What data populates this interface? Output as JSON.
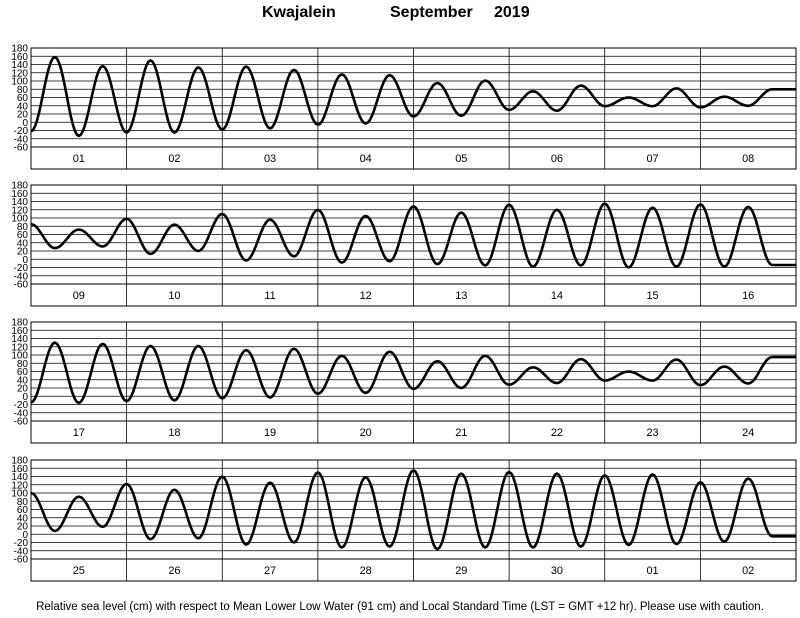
{
  "title": {
    "location": "Kwajalein",
    "month": "September",
    "year": "2019"
  },
  "footer": "Relative sea level (cm) with respect to Mean Lower Low Water (91 cm) and Local Standard Time (LST = GMT +12 hr). Please use with caution.",
  "chart_data": {
    "type": "line",
    "ylim": [
      -60,
      180
    ],
    "yticks": [
      -60,
      -40,
      -20,
      0,
      20,
      40,
      60,
      80,
      100,
      120,
      140,
      160,
      180
    ],
    "grid": true,
    "ylabel": "",
    "xlabel": "",
    "panels": [
      {
        "day_labels": [
          "01",
          "02",
          "03",
          "04",
          "05",
          "06",
          "07",
          "08"
        ],
        "series": [
          {
            "x_hours": [
              0,
              6,
              12,
              18,
              24,
              30,
              36,
              42,
              48,
              54,
              60,
              66,
              72,
              78,
              84,
              90,
              96,
              102,
              108,
              114,
              120,
              126,
              132,
              138,
              144,
              150,
              156,
              162,
              168,
              174,
              180,
              186,
              192
            ],
            "values": [
              -22,
              158,
              -33,
              136,
              -25,
              150,
              -25,
              133,
              -18,
              135,
              -15,
              127,
              -6,
              116,
              -3,
              114,
              14,
              95,
              16,
              101,
              30,
              75,
              28,
              89,
              39,
              60,
              39,
              82,
              36,
              62,
              40,
              80,
              80
            ]
          }
        ]
      },
      {
        "day_labels": [
          "09",
          "10",
          "11",
          "12",
          "13",
          "14",
          "15",
          "16"
        ],
        "series": [
          {
            "x_hours": [
              0,
              6,
              12,
              18,
              24,
              30,
              36,
              42,
              48,
              54,
              60,
              66,
              72,
              78,
              84,
              90,
              96,
              102,
              108,
              114,
              120,
              126,
              132,
              138,
              144,
              150,
              156,
              162,
              168,
              174,
              180,
              186,
              192
            ],
            "values": [
              85,
              27,
              72,
              31,
              98,
              13,
              84,
              20,
              110,
              -3,
              96,
              7,
              120,
              -8,
              105,
              -5,
              128,
              -12,
              113,
              -15,
              132,
              -18,
              120,
              -15,
              135,
              -20,
              125,
              -18,
              133,
              -18,
              127,
              -14,
              -14
            ]
          }
        ]
      },
      {
        "day_labels": [
          "17",
          "18",
          "19",
          "20",
          "21",
          "22",
          "23",
          "24"
        ],
        "series": [
          {
            "x_hours": [
              0,
              6,
              12,
              18,
              24,
              30,
              36,
              42,
              48,
              54,
              60,
              66,
              72,
              78,
              84,
              90,
              96,
              102,
              108,
              114,
              120,
              126,
              132,
              138,
              144,
              150,
              156,
              162,
              168,
              174,
              180,
              186,
              192
            ],
            "values": [
              -15,
              130,
              -16,
              127,
              -12,
              122,
              -10,
              122,
              -5,
              112,
              -3,
              115,
              6,
              98,
              8,
              108,
              18,
              85,
              20,
              98,
              28,
              70,
              32,
              90,
              38,
              60,
              38,
              89,
              27,
              72,
              31,
              95,
              95
            ]
          }
        ]
      },
      {
        "day_labels": [
          "25",
          "26",
          "27",
          "28",
          "29",
          "30",
          "01",
          "02"
        ],
        "series": [
          {
            "x_hours": [
              0,
              6,
              12,
              18,
              24,
              30,
              36,
              42,
              48,
              54,
              60,
              66,
              72,
              78,
              84,
              90,
              96,
              102,
              108,
              114,
              120,
              126,
              132,
              138,
              144,
              150,
              156,
              162,
              168,
              174,
              180,
              186,
              192
            ],
            "values": [
              100,
              8,
              91,
              18,
              122,
              -12,
              108,
              -10,
              140,
              -25,
              125,
              -20,
              150,
              -32,
              138,
              -30,
              155,
              -36,
              147,
              -32,
              151,
              -32,
              147,
              -30,
              143,
              -26,
              145,
              -24,
              126,
              -18,
              135,
              -5,
              -5
            ]
          }
        ]
      }
    ]
  }
}
